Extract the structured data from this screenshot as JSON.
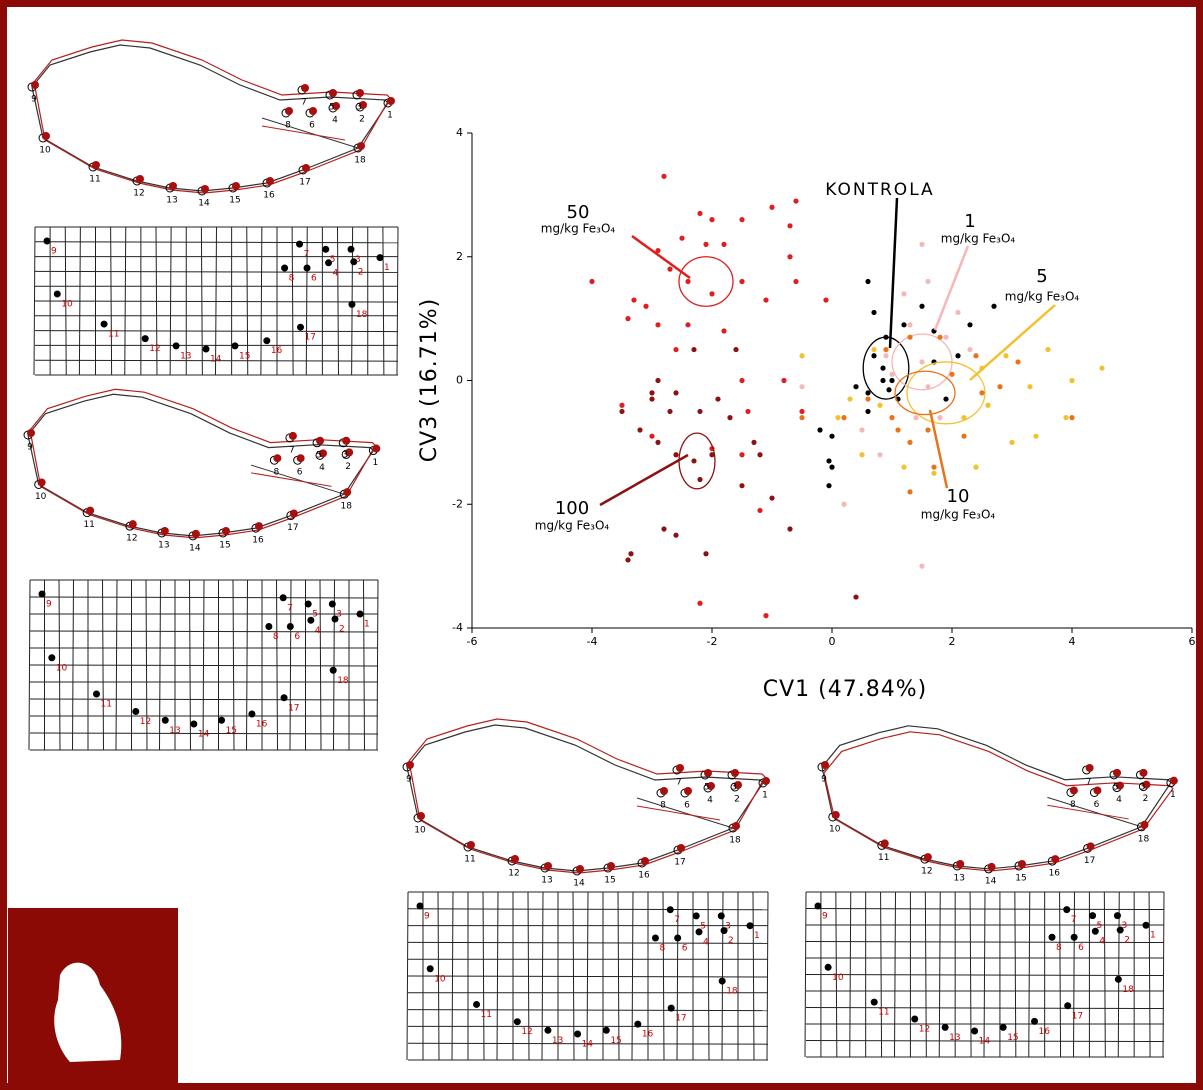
{
  "chart_data": {
    "type": "scatter",
    "xlabel": "CV1 (47.84%)",
    "ylabel": "CV3 (16.71%)",
    "xlim": [
      -6,
      6
    ],
    "ylim": [
      -4,
      4
    ],
    "xticks": [
      -6,
      -4,
      -2,
      0,
      2,
      4,
      6
    ],
    "yticks": [
      -4,
      -2,
      0,
      2,
      4
    ],
    "unit": "mg/kg Fe₃O₄",
    "series": [
      {
        "name": "KONTROLA",
        "color": "#000000",
        "ellipse": [
          0.9,
          0.2,
          0.38,
          0.5
        ],
        "x": [
          0.6,
          0.7,
          0.9,
          0.7,
          0.85,
          1.0,
          0.6,
          0.4,
          1.1,
          0.95,
          -0.05,
          0.0,
          -0.05,
          0.0,
          -0.2,
          1.7,
          2.1,
          1.9,
          1.5,
          2.3,
          1.2,
          2.7,
          1.7,
          0.85,
          0.6
        ],
        "values": [
          1.6,
          1.1,
          0.7,
          0.4,
          0.2,
          0.0,
          -0.2,
          -0.1,
          -0.3,
          -0.15,
          -1.3,
          -1.4,
          -1.7,
          -0.9,
          -0.8,
          0.8,
          0.4,
          -0.3,
          1.2,
          0.9,
          0.9,
          1.2,
          0.3,
          0.0,
          -0.5
        ]
      },
      {
        "name": "1",
        "color": "#f5b7b7",
        "ellipse": [
          1.5,
          0.3,
          0.5,
          0.45
        ],
        "x": [
          1.5,
          1.6,
          1.2,
          1.3,
          1.9,
          1.5,
          1.0,
          1.4,
          0.8,
          1.8,
          0.2,
          1.5,
          0.5,
          2.3,
          0.9,
          1.6,
          2.1,
          -0.5
        ],
        "values": [
          2.2,
          1.6,
          1.4,
          0.9,
          0.7,
          0.3,
          0.1,
          -0.6,
          -1.2,
          -0.6,
          -2.0,
          -3.0,
          -0.8,
          0.5,
          0.4,
          -0.1,
          1.1,
          -0.1
        ]
      },
      {
        "name": "5",
        "color": "#f2c12e",
        "ellipse": [
          1.9,
          -0.2,
          0.65,
          0.5
        ],
        "x": [
          4.5,
          4.0,
          3.9,
          3.4,
          3.3,
          2.9,
          2.2,
          2.4,
          1.7,
          0.5,
          0.8,
          0.7,
          -0.5,
          0.1,
          3.0,
          2.5,
          3.6,
          1.2,
          2.6,
          0.3
        ],
        "values": [
          0.2,
          0.0,
          -0.6,
          -0.9,
          -0.1,
          0.4,
          -0.6,
          -1.4,
          -1.5,
          -1.2,
          -0.4,
          0.5,
          0.4,
          -0.6,
          -1.0,
          0.2,
          0.5,
          -1.4,
          -0.4,
          -0.3
        ]
      },
      {
        "name": "10",
        "color": "#e8731a",
        "ellipse": [
          1.55,
          -0.2,
          0.5,
          0.35
        ],
        "x": [
          1.3,
          1.8,
          2.4,
          2.5,
          2.2,
          1.6,
          1.3,
          1.0,
          0.6,
          0.9,
          1.7,
          1.3,
          2.8,
          3.1,
          2.0,
          0.2,
          -0.5,
          4.0,
          1.1
        ],
        "values": [
          0.7,
          0.7,
          0.4,
          -0.2,
          -0.9,
          -0.8,
          -1.0,
          -0.6,
          -0.3,
          0.5,
          -1.4,
          -1.8,
          -0.1,
          0.3,
          0.1,
          -0.6,
          -0.6,
          -0.6,
          -0.8
        ]
      },
      {
        "name": "50",
        "color": "#e01e1e",
        "ellipse": [
          -2.1,
          1.6,
          0.45,
          0.4
        ],
        "x": [
          -2.8,
          -2.2,
          -2.0,
          -2.5,
          -2.1,
          -2.9,
          -1.8,
          -1.5,
          -1.0,
          -0.7,
          -0.7,
          -0.6,
          -1.1,
          -1.5,
          -2.0,
          -2.4,
          -2.7,
          -3.1,
          -3.3,
          -3.4,
          -4.0,
          -2.4,
          -1.8,
          -0.1,
          -0.8,
          -0.5,
          -2.6,
          -2.9,
          -3.5,
          -3.0,
          -2.0,
          -1.4,
          -1.5,
          -1.2,
          -1.1,
          -2.2,
          -0.6,
          -1.5
        ],
        "values": [
          3.3,
          2.7,
          2.6,
          2.3,
          2.2,
          2.1,
          2.2,
          2.6,
          2.8,
          2.5,
          2.0,
          1.6,
          1.3,
          1.6,
          1.4,
          1.6,
          1.8,
          1.2,
          1.3,
          1.0,
          1.6,
          0.9,
          0.8,
          1.3,
          0.0,
          -0.5,
          0.5,
          0.9,
          -0.4,
          -0.9,
          -1.1,
          -0.5,
          -1.2,
          -2.1,
          -3.8,
          -3.6,
          2.9,
          0.0
        ]
      },
      {
        "name": "100",
        "color": "#8c1212",
        "ellipse": [
          -2.25,
          -1.3,
          0.3,
          0.45
        ],
        "x": [
          -3.4,
          -3.35,
          -2.8,
          -2.6,
          -2.1,
          -2.2,
          -2.3,
          -2.0,
          -2.6,
          -2.9,
          -3.2,
          -3.0,
          -3.0,
          -2.9,
          -2.6,
          -2.3,
          -1.6,
          -1.7,
          -1.5,
          -1.2,
          -1.0,
          -0.7,
          -3.5,
          -2.7,
          -1.9,
          -1.3,
          0.4,
          -2.2
        ],
        "values": [
          -2.9,
          -2.8,
          -2.4,
          -2.5,
          -2.8,
          -1.6,
          -1.3,
          -1.2,
          -1.2,
          -1.0,
          -0.8,
          -0.3,
          -0.2,
          0.0,
          -0.2,
          0.5,
          0.5,
          -0.6,
          -1.7,
          -1.2,
          -1.9,
          -2.4,
          -0.5,
          -0.5,
          -0.3,
          -1.0,
          -3.5,
          -0.5
        ]
      }
    ]
  },
  "landmarks": [
    "1",
    "2",
    "3",
    "4",
    "5",
    "6",
    "7",
    "8",
    "9",
    "10",
    "11",
    "12",
    "13",
    "14",
    "15",
    "16",
    "17",
    "18"
  ]
}
